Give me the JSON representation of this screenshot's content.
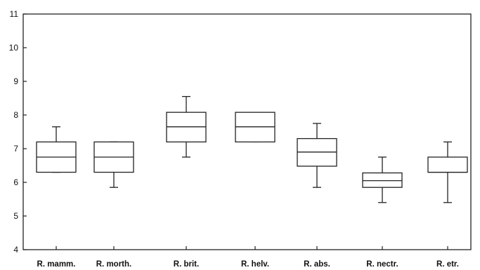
{
  "chart_data": {
    "type": "boxplot",
    "title": "",
    "xlabel": "",
    "ylabel": "",
    "ylim": [
      4,
      11
    ],
    "yticks": [
      4,
      5,
      6,
      7,
      8,
      9,
      10,
      11
    ],
    "grid": false,
    "categories": [
      "R. mamm.",
      "R. morth.",
      "R. brit.",
      "R. helv.",
      "R. abs.",
      "R. nectr.",
      "R. etr."
    ],
    "boxes": [
      {
        "min": 6.3,
        "q1": 6.3,
        "median": 6.75,
        "q3": 7.2,
        "max": 7.65
      },
      {
        "min": 5.85,
        "q1": 6.3,
        "median": 6.75,
        "q3": 7.2,
        "max": 7.2
      },
      {
        "min": 6.75,
        "q1": 7.2,
        "median": 7.65,
        "q3": 8.08,
        "max": 8.55
      },
      {
        "min": 7.2,
        "q1": 7.2,
        "median": 7.65,
        "q3": 8.08,
        "max": 8.08
      },
      {
        "min": 5.85,
        "q1": 6.48,
        "median": 6.9,
        "q3": 7.3,
        "max": 7.75
      },
      {
        "min": 5.4,
        "q1": 5.85,
        "median": 6.05,
        "q3": 6.28,
        "max": 6.75
      },
      {
        "min": 5.4,
        "q1": 6.3,
        "median": 6.3,
        "q3": 6.75,
        "max": 7.2
      }
    ]
  }
}
